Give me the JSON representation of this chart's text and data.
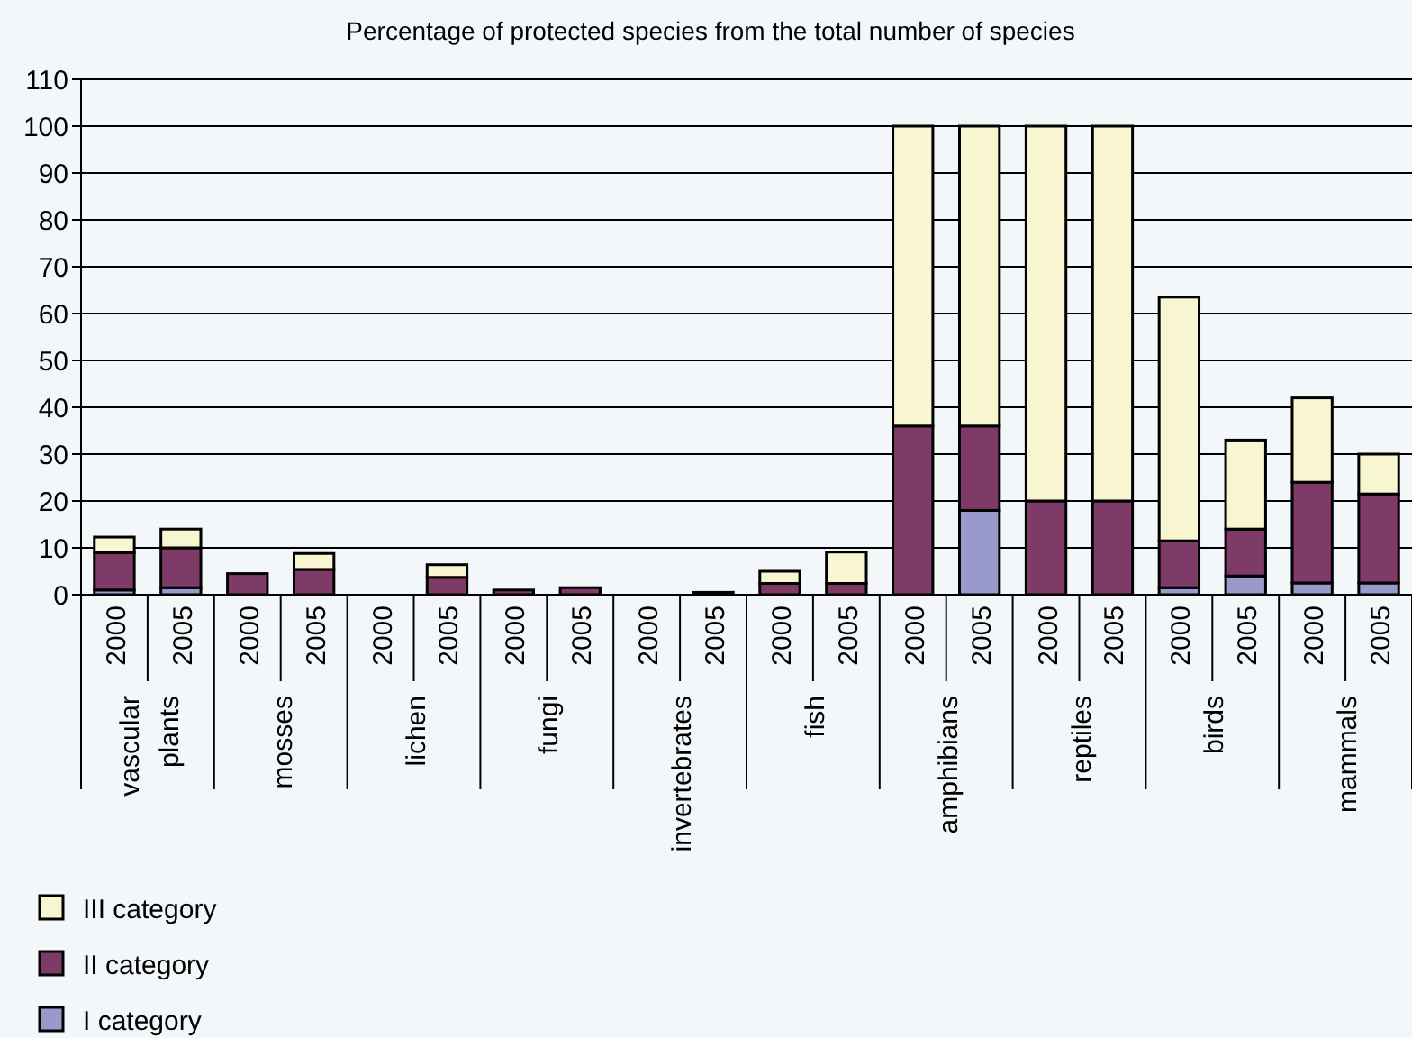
{
  "chart_data": {
    "type": "bar",
    "stacked": true,
    "title": "Percentage of protected species from the total number of species",
    "categories": [
      "2000",
      "2005",
      "2000",
      "2005",
      "2000",
      "2005",
      "2000",
      "2005",
      "2000",
      "2005",
      "2000",
      "2005",
      "2000",
      "2005",
      "2000",
      "2005",
      "2000",
      "2005",
      "2000",
      "2005"
    ],
    "series": [
      {
        "name": "I category",
        "color": "#9999cc",
        "values": [
          1,
          1.5,
          0,
          0,
          0,
          0,
          0,
          0,
          0,
          0,
          0,
          0,
          0,
          18,
          0,
          0,
          1.5,
          4,
          2.5,
          2.5
        ]
      },
      {
        "name": "II category",
        "color": "#7f3b68",
        "values": [
          8,
          8.5,
          4.5,
          5.4,
          0,
          3.7,
          1,
          1.5,
          0,
          0.5,
          2.4,
          2.4,
          36,
          18,
          20,
          20,
          10,
          10,
          21.5,
          19
        ]
      },
      {
        "name": "III category",
        "color": "#f8f6d0",
        "values": [
          3.3,
          4,
          0,
          3.4,
          0,
          2.7,
          0,
          0,
          0,
          0,
          2.6,
          6.7,
          64,
          64,
          80,
          80,
          52,
          19,
          18,
          8.5
        ]
      }
    ],
    "annotations": [
      "vascular plants",
      "mosses",
      "lichen",
      "fungi",
      "invertebrates",
      "fish",
      "amphibians",
      "reptiles",
      "birds",
      "mammals"
    ],
    "ylim": [
      0,
      110
    ],
    "yticks": [
      0,
      10,
      20,
      30,
      40,
      50,
      60,
      70,
      80,
      90,
      100,
      110
    ],
    "grid": "y",
    "legend": "bottom left"
  }
}
